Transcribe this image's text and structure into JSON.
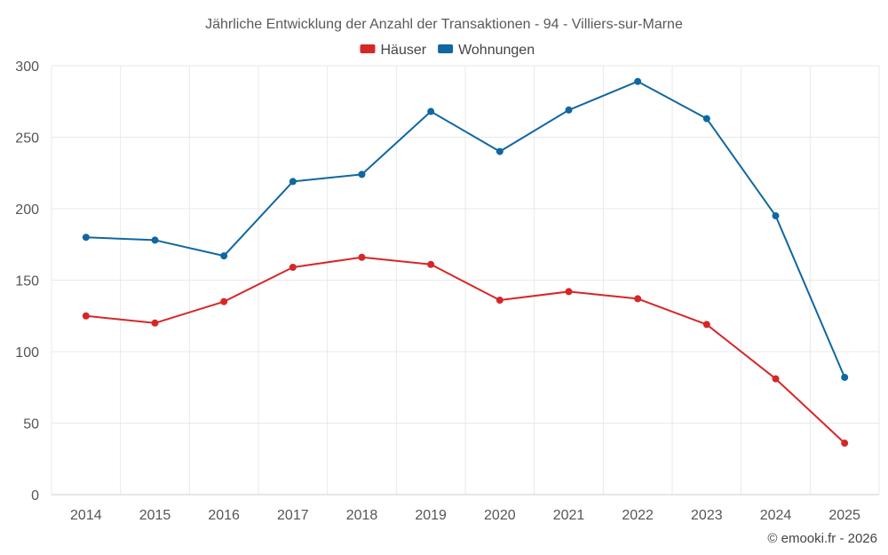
{
  "chart_data": {
    "type": "line",
    "title": "Jährliche Entwicklung der Anzahl der Transaktionen - 94 - Villiers-sur-Marne",
    "categories": [
      "2014",
      "2015",
      "2016",
      "2017",
      "2018",
      "2019",
      "2020",
      "2021",
      "2022",
      "2023",
      "2024",
      "2025"
    ],
    "series": [
      {
        "name": "Häuser",
        "color": "#d62728",
        "values": [
          125,
          120,
          135,
          159,
          166,
          161,
          136,
          142,
          137,
          119,
          81,
          36
        ]
      },
      {
        "name": "Wohnungen",
        "color": "#1067a1",
        "values": [
          180,
          178,
          167,
          219,
          224,
          268,
          240,
          269,
          289,
          263,
          195,
          82
        ]
      }
    ],
    "ylim": [
      0,
      300
    ],
    "yticks": [
      0,
      50,
      100,
      150,
      200,
      250,
      300
    ],
    "grid": true,
    "legend": "top-center",
    "credit": "© emooki.fr - 2026"
  }
}
